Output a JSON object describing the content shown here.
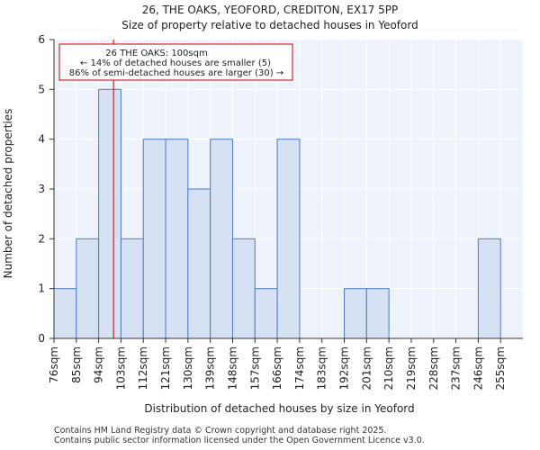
{
  "chart_data": {
    "type": "bar",
    "title": "26, THE OAKS, YEOFORD, CREDITON, EX17 5PP",
    "subtitle": "Size of property relative to detached houses in Yeoford",
    "xlabel": "Distribution of detached houses by size in Yeoford",
    "ylabel": "Number of detached properties",
    "categories": [
      "76sqm",
      "85sqm",
      "94sqm",
      "103sqm",
      "112sqm",
      "121sqm",
      "130sqm",
      "139sqm",
      "148sqm",
      "157sqm",
      "166sqm",
      "174sqm",
      "183sqm",
      "192sqm",
      "201sqm",
      "210sqm",
      "219sqm",
      "228sqm",
      "237sqm",
      "246sqm",
      "255sqm"
    ],
    "values": [
      1,
      2,
      5,
      2,
      4,
      4,
      3,
      4,
      2,
      1,
      4,
      0,
      0,
      1,
      1,
      0,
      0,
      0,
      0,
      2,
      0
    ],
    "ylim": [
      0,
      6
    ],
    "yticks": [
      0,
      1,
      2,
      3,
      4,
      5,
      6
    ],
    "grid": true,
    "bar_color": "#d6e1f3",
    "bar_edge_color": "#4a7cc7",
    "marker": {
      "value": 100,
      "color": "#c00000",
      "annotation": [
        "26 THE OAKS: 100sqm",
        "← 14% of detached houses are smaller (5)",
        "86% of semi-detached houses are larger (30) →"
      ]
    }
  },
  "footer": {
    "line1": "Contains HM Land Registry data © Crown copyright and database right 2025.",
    "line2": "Contains public sector information licensed under the Open Government Licence v3.0."
  }
}
